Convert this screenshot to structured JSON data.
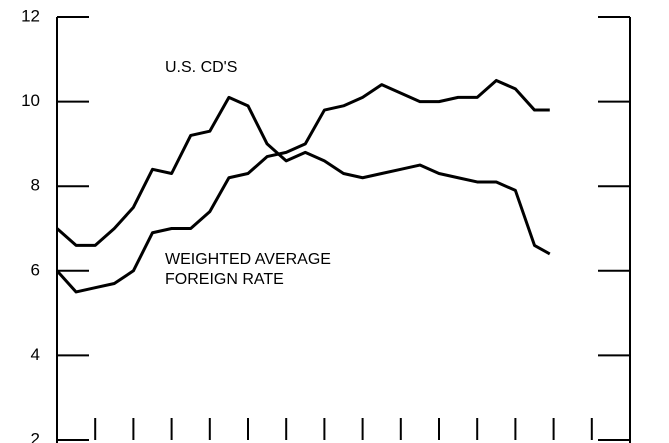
{
  "chart_data": {
    "type": "line",
    "annotations": [
      "U.S. CD'S",
      "WEIGHTED AVERAGE",
      "FOREIGN RATE"
    ],
    "x": [
      0,
      0.5,
      1,
      1.5,
      2,
      2.5,
      3,
      3.5,
      4,
      4.5,
      5,
      5.5,
      6,
      6.5,
      7,
      7.5,
      8,
      8.5,
      9,
      9.5,
      10,
      10.5,
      11,
      11.5,
      12,
      12.5,
      12.9
    ],
    "series": [
      {
        "color": "#000000",
        "values": [
          7.0,
          6.6,
          6.6,
          7.0,
          7.5,
          8.4,
          8.3,
          9.2,
          9.3,
          10.1,
          9.9,
          9.0,
          8.6,
          8.8,
          8.6,
          8.3,
          8.2,
          8.3,
          8.4,
          8.5,
          8.3,
          8.2,
          8.1,
          8.1,
          7.9,
          6.6,
          6.4
        ]
      },
      {
        "color": "#000000",
        "values": [
          6.0,
          5.5,
          5.6,
          5.7,
          6.0,
          6.9,
          7.0,
          7.0,
          7.4,
          8.2,
          8.3,
          8.7,
          8.8,
          9.0,
          9.8,
          9.9,
          10.1,
          10.4,
          10.2,
          10.0,
          10.0,
          10.1,
          10.1,
          10.5,
          10.3,
          9.8,
          9.8
        ]
      }
    ],
    "xlim": [
      0,
      15
    ],
    "xticks": [
      1,
      2,
      3,
      4,
      5,
      6,
      7,
      8,
      9,
      10,
      11,
      12,
      13,
      14
    ],
    "ylim": [
      2,
      12
    ],
    "yticks": [
      2,
      4,
      6,
      8,
      10,
      12
    ]
  }
}
